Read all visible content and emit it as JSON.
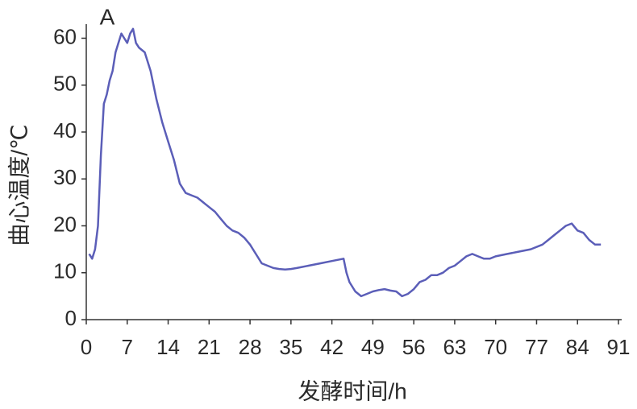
{
  "chart_data": {
    "type": "line",
    "panel_label": "A",
    "x_label": "发酵时间/h",
    "y_label": "曲心温度/℃",
    "xlim": [
      0,
      91
    ],
    "ylim": [
      0,
      63
    ],
    "xticks": [
      0,
      7,
      14,
      21,
      28,
      35,
      42,
      49,
      56,
      63,
      70,
      77,
      84,
      91
    ],
    "yticks": [
      0,
      10,
      20,
      30,
      40,
      50,
      60
    ],
    "series": [
      {
        "color": "#5b5eb8",
        "x": [
          0.5,
          1,
          1.5,
          2,
          2.5,
          3,
          3.5,
          4,
          4.5,
          5,
          5.5,
          6,
          6.5,
          7,
          7.5,
          8,
          8.5,
          9,
          10,
          11,
          12,
          13,
          14,
          15,
          16,
          17,
          18,
          19,
          20,
          21,
          22,
          23,
          24,
          25,
          26,
          27,
          28,
          29,
          30,
          31,
          32,
          33,
          34,
          35,
          36,
          38,
          40,
          42,
          44,
          44.5,
          45,
          46,
          47,
          48,
          49,
          50,
          51,
          52,
          53,
          54,
          55,
          56,
          57,
          58,
          59,
          60,
          61,
          62,
          63,
          64,
          65,
          66,
          67,
          68,
          69,
          70,
          72,
          74,
          76,
          78,
          79,
          80,
          81,
          82,
          83,
          84,
          85,
          86,
          87,
          88
        ],
        "values": [
          14,
          13,
          15,
          20,
          35,
          46,
          48,
          51,
          53,
          57,
          59,
          61,
          60,
          59,
          61,
          62,
          59,
          58,
          57,
          53,
          47,
          42,
          38,
          34,
          29,
          27,
          26.5,
          26,
          25,
          24,
          23,
          21.5,
          20,
          19,
          18.5,
          17.5,
          16,
          14,
          12,
          11.5,
          11,
          10.8,
          10.7,
          10.8,
          11,
          11.5,
          12,
          12.5,
          13,
          10,
          8,
          6,
          5,
          5.5,
          6,
          6.3,
          6.5,
          6.2,
          6,
          5,
          5.5,
          6.5,
          8,
          8.5,
          9.5,
          9.5,
          10,
          11,
          11.5,
          12.5,
          13.5,
          14,
          13.5,
          13,
          13,
          13.5,
          14,
          14.5,
          15,
          16,
          17,
          18,
          19,
          20,
          20.5,
          19,
          18.5,
          17,
          16,
          16
        ]
      }
    ]
  }
}
